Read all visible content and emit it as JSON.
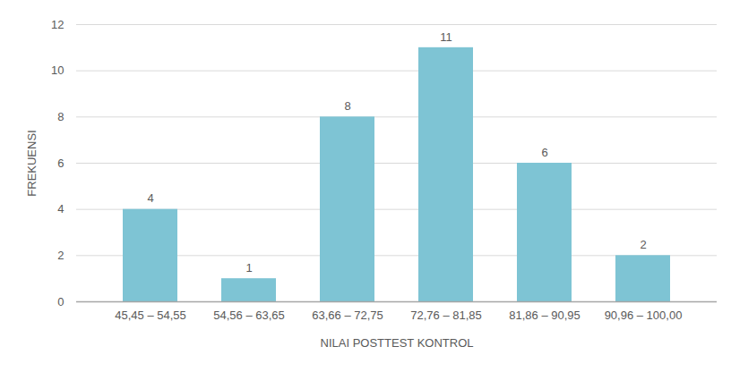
{
  "chart_data": {
    "type": "bar",
    "categories": [
      "45,45 – 54,55",
      "54,56 – 63,65",
      "63,66 – 72,75",
      "72,76 – 81,85",
      "81,86 – 90,95",
      "90,96 – 100,00"
    ],
    "values": [
      4,
      1,
      8,
      11,
      6,
      2
    ],
    "color": "#7ec4d4",
    "x_label": "NILAI POSTTEST KONTROL",
    "y_label": "FREKUENSI",
    "ylim": [
      0,
      12
    ],
    "yticks": [
      0,
      2,
      4,
      6,
      8,
      10,
      12
    ],
    "grid": true,
    "data_labels": true
  }
}
